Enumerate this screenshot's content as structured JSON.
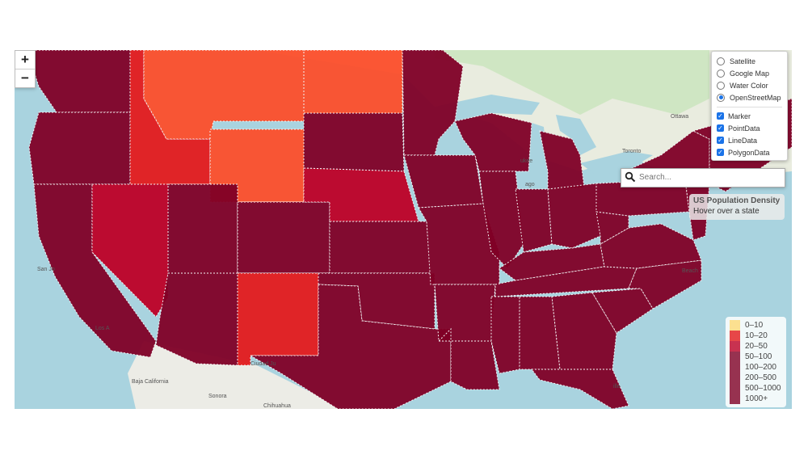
{
  "title": "US Population Density",
  "info": {
    "title": "US Population Density",
    "hint": "Hover over a state"
  },
  "zoom": {
    "in_label": "+",
    "out_label": "−"
  },
  "search": {
    "placeholder": "Search..."
  },
  "base_layers": [
    {
      "label": "Satellite",
      "selected": false
    },
    {
      "label": "Google Map",
      "selected": false
    },
    {
      "label": "Water Color",
      "selected": false
    },
    {
      "label": "OpenStreetMap",
      "selected": true
    }
  ],
  "overlays": [
    {
      "label": "Marker",
      "checked": true
    },
    {
      "label": "PointData",
      "checked": true
    },
    {
      "label": "LineData",
      "checked": true
    },
    {
      "label": "PolygonData",
      "checked": true
    }
  ],
  "legend": [
    {
      "label": "0–10",
      "color": "#FED976"
    },
    {
      "label": "10–20",
      "color": "#E31A1C"
    },
    {
      "label": "20–50",
      "color": "#BD0026"
    },
    {
      "label": "50–100",
      "color": "#800026"
    },
    {
      "label": "100–200",
      "color": "#800026"
    },
    {
      "label": "200–500",
      "color": "#800026"
    },
    {
      "label": "500–1000",
      "color": "#800026"
    },
    {
      "label": "1000+",
      "color": "#800026"
    }
  ],
  "place_labels": {
    "ottawa": "Ottawa",
    "toronto": "Toronto",
    "san_jose": "San Jo",
    "los_angeles": "Los A",
    "ciudad_juarez": "Ciudad Ju",
    "baja": "Baja California",
    "sonora": "Sonora",
    "chihuahua": "Chihuahua",
    "beach": "Beach",
    "ille": "ille",
    "ukee": "ukee",
    "ago": "ago"
  },
  "state_colors": {
    "high": "#800026",
    "mid_high": "#BD0026",
    "mid": "#E31A1C",
    "low": "#FC4E2A"
  }
}
